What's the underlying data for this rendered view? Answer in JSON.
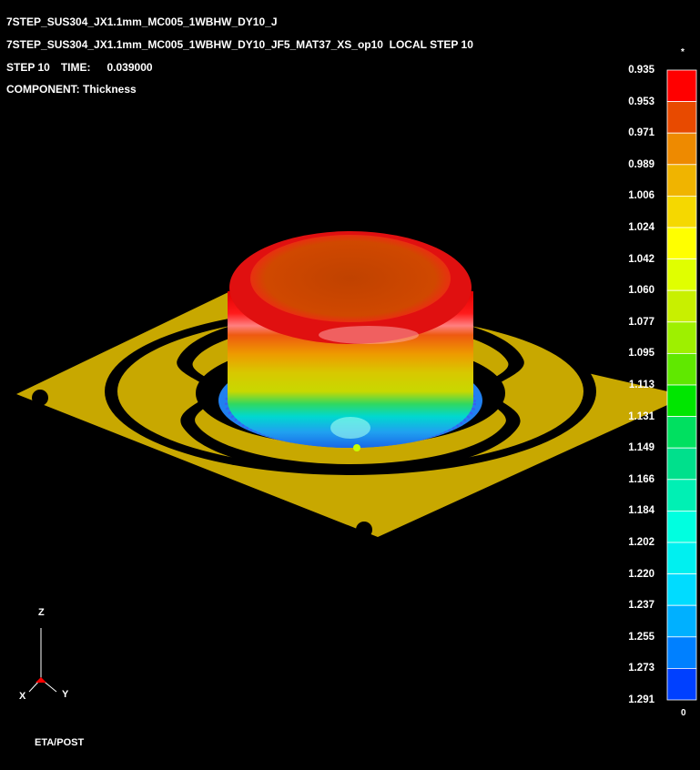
{
  "header": {
    "line1": "7STEP_SUS304_JX1.1mm_MC005_1WBHW_DY10_J",
    "line2": "7STEP_SUS304_JX1.1mm_MC005_1WBHW_DY10_JF5_MAT37_XS_op10  LOCAL STEP 10",
    "step_label": "STEP 10",
    "time_label": "TIME:",
    "time_value": "0.039000",
    "component": "COMPONENT: Thickness"
  },
  "legend": {
    "top_marker": "*",
    "bottom_marker": "0",
    "values": [
      "0.935",
      "0.953",
      "0.971",
      "0.989",
      "1.006",
      "1.024",
      "1.042",
      "1.060",
      "1.077",
      "1.095",
      "1.113",
      "1.131",
      "1.149",
      "1.166",
      "1.184",
      "1.202",
      "1.220",
      "1.237",
      "1.255",
      "1.273",
      "1.291"
    ],
    "colors": [
      "#ff0000",
      "#e84a00",
      "#ee8a00",
      "#f0b400",
      "#f5d800",
      "#ffff00",
      "#e0ff00",
      "#c8f000",
      "#9ef000",
      "#60e800",
      "#00e600",
      "#00e060",
      "#00e08c",
      "#00f0b4",
      "#00ffe0",
      "#00f0f0",
      "#00dcff",
      "#00b0ff",
      "#0080ff",
      "#0040ff",
      "#0000ff"
    ]
  },
  "axes": {
    "z": "Z",
    "x": "X",
    "y": "Y"
  },
  "footer": "ETA/POST"
}
